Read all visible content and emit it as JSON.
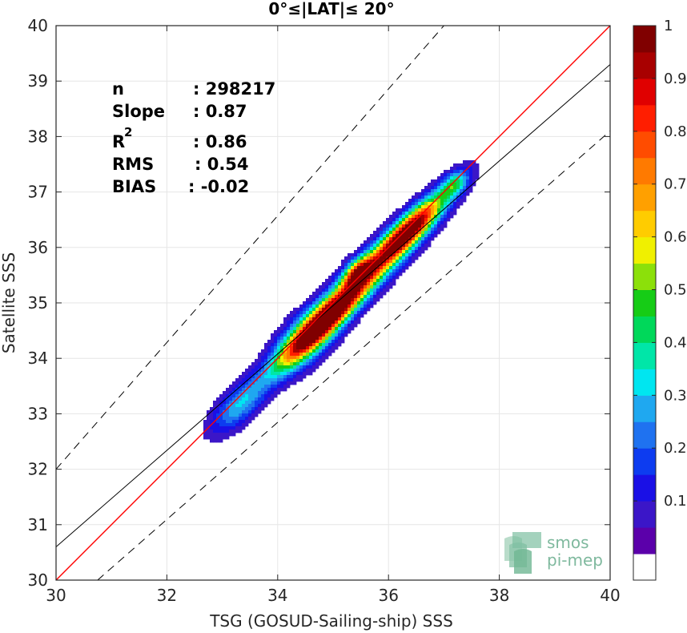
{
  "chart_data": {
    "type": "heatmap",
    "title": "0°≤|LAT|≤ 20°",
    "xlabel": "TSG (GOSUD-Sailing-ship) SSS",
    "ylabel": "Satellite SSS",
    "xlim": [
      30,
      40
    ],
    "ylim": [
      30,
      40
    ],
    "xticks": [
      "30",
      "32",
      "34",
      "36",
      "38",
      "40"
    ],
    "yticks": [
      "30",
      "31",
      "32",
      "33",
      "34",
      "35",
      "36",
      "37",
      "38",
      "39",
      "40"
    ],
    "grid": true,
    "stats": [
      {
        "label": "n",
        "value": ": 298217"
      },
      {
        "label": "Slope",
        "value": ": 0.87"
      },
      {
        "label": "R",
        "sup": "2",
        "value": ": 0.86"
      },
      {
        "label": "RMS",
        "value": ": 0.54"
      },
      {
        "label": "BIAS",
        "value": ": -0.02"
      }
    ],
    "reference_lines": {
      "one_to_one": {
        "color": "#ff0000",
        "x": [
          30,
          40
        ],
        "y": [
          30,
          40
        ]
      },
      "regression": {
        "color": "#000000",
        "x": [
          30,
          40
        ],
        "y": [
          30.6,
          39.3
        ]
      },
      "upper_dashed": {
        "x": [
          30,
          37
        ],
        "y": [
          32,
          40
        ]
      },
      "lower_dashed": {
        "x": [
          30.75,
          40
        ],
        "y": [
          30,
          38.1
        ]
      }
    },
    "density_peaks": [
      {
        "x": 34.85,
        "y": 34.68,
        "level": 1.0
      },
      {
        "x": 36.35,
        "y": 36.28,
        "level": 0.95
      },
      {
        "x": 35.45,
        "y": 35.57,
        "level": 0.78
      },
      {
        "x": 37.2,
        "y": 37.15,
        "level": 0.35
      },
      {
        "x": 33.25,
        "y": 33.15,
        "level": 0.3
      }
    ],
    "colorbar": {
      "ticks": [
        "0.1",
        "0.2",
        "0.3",
        "0.4",
        "0.5",
        "0.6",
        "0.7",
        "0.8",
        "0.9",
        "1"
      ],
      "colors": [
        "#ffffff",
        "#5b00aa",
        "#3b16c8",
        "#1a10e6",
        "#0d3cf0",
        "#1f72f0",
        "#1fa8f0",
        "#00e6f0",
        "#00e6a8",
        "#00d85a",
        "#16cc16",
        "#8ce00a",
        "#f0f000",
        "#ffcc00",
        "#ffa000",
        "#ff7a00",
        "#ff4c00",
        "#ff1e00",
        "#e00000",
        "#a80000",
        "#800000"
      ]
    }
  },
  "logo": {
    "line1": "smos",
    "line2": "pi-mep"
  }
}
